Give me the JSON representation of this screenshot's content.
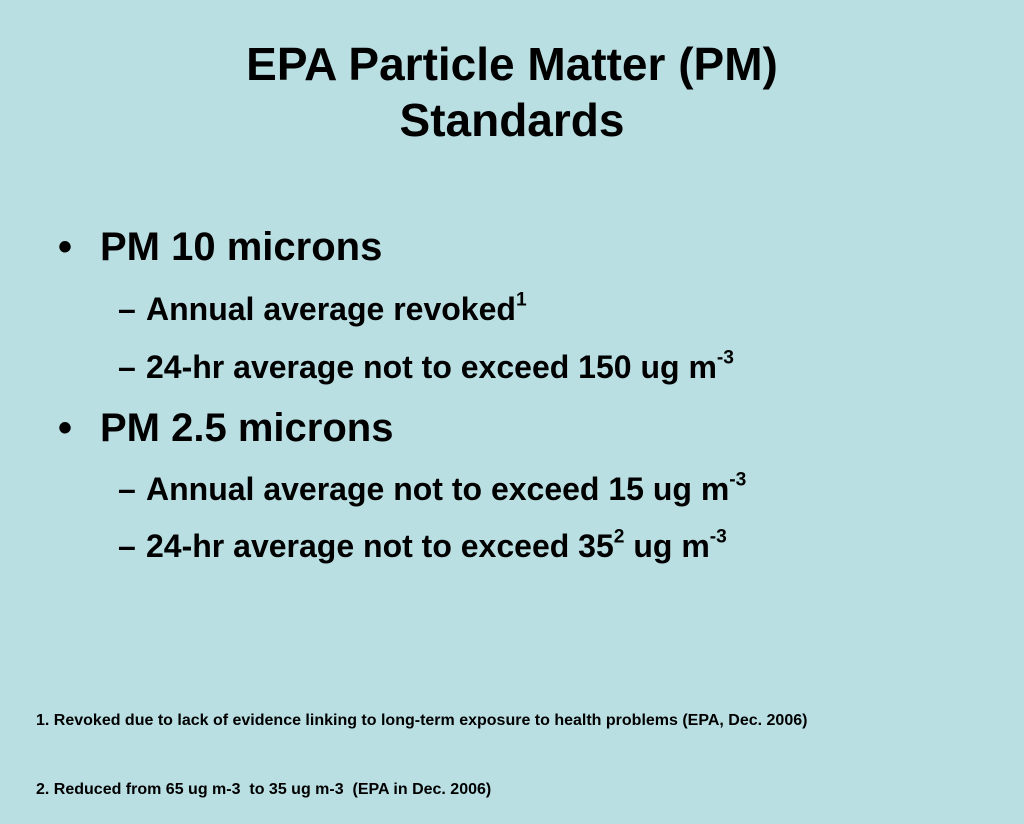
{
  "title": {
    "line1": "EPA Particle Matter (PM)",
    "line2": "Standards"
  },
  "bullets": {
    "pm10": {
      "marker": "•",
      "label": "PM 10 microns",
      "sub": [
        {
          "marker": "–",
          "text": "Annual average revoked",
          "sup": "1",
          "tail": "",
          "tail_sup": ""
        },
        {
          "marker": "–",
          "text": "24-hr average not to exceed 150 ug m",
          "sup": "-3",
          "tail": "",
          "tail_sup": ""
        }
      ]
    },
    "pm25": {
      "marker": "•",
      "label": "PM 2.5 microns",
      "sub": [
        {
          "marker": "–",
          "text": "Annual average not to exceed 15 ug m",
          "sup": "-3",
          "tail": "",
          "tail_sup": ""
        },
        {
          "marker": "–",
          "text": "24-hr average not to exceed 35",
          "sup": "2",
          "tail": " ug m",
          "tail_sup": "-3"
        }
      ]
    }
  },
  "footnotes": [
    "1. Revoked due to lack of evidence linking to long-term exposure to health problems (EPA, Dec. 2006)",
    "2. Reduced from 65 ug m-3  to 35 ug m-3  (EPA in Dec. 2006)"
  ]
}
